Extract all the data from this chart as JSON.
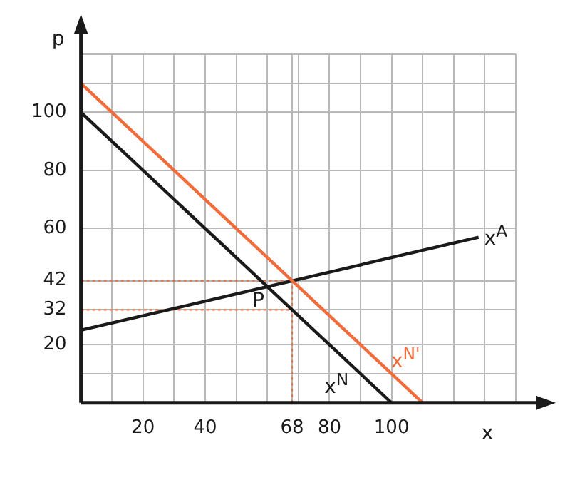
{
  "chart_data": {
    "type": "line",
    "xlabel": "x",
    "ylabel": "p",
    "xlim": [
      0,
      140
    ],
    "ylim": [
      0,
      120
    ],
    "xticks": [
      {
        "value": 10,
        "label": null
      },
      20,
      {
        "value": 30,
        "label": null
      },
      40,
      {
        "value": 50,
        "label": null
      },
      {
        "value": 60,
        "label": null
      },
      68,
      {
        "value": 70,
        "label": null
      },
      80,
      {
        "value": 90,
        "label": null
      },
      100,
      {
        "value": 110,
        "label": null
      },
      {
        "value": 120,
        "label": null
      },
      {
        "value": 130,
        "label": null
      },
      {
        "value": 140,
        "label": null
      }
    ],
    "yticks": [
      {
        "value": 10,
        "label": null
      },
      20,
      32,
      42,
      60,
      80,
      100,
      {
        "value": 110,
        "label": null
      },
      {
        "value": 120,
        "label": null
      }
    ],
    "grid": true,
    "legend": false,
    "series": [
      {
        "name": "x$^{N}$",
        "color": "#1a1a1a",
        "x": [
          0,
          100
        ],
        "values": [
          100,
          0
        ]
      },
      {
        "name": "x$^{N'}$",
        "color": "#f26b3a",
        "x": [
          0,
          110
        ],
        "values": [
          110,
          0
        ]
      },
      {
        "name": "x$^{A}$",
        "color": "#1a1a1a",
        "x": [
          0,
          128
        ],
        "values": [
          25,
          57
        ]
      },
      {
        "color": "#f26b3a",
        "line_style": "dotted",
        "x": [
          0,
          68
        ],
        "values": [
          42,
          42
        ]
      },
      {
        "color": "#f26b3a",
        "line_style": "dotted",
        "x": [
          0,
          68
        ],
        "values": [
          32,
          32
        ]
      },
      {
        "color": "#f26b3a",
        "line_style": "dotted",
        "x": [
          68,
          68
        ],
        "values": [
          0,
          42
        ]
      }
    ],
    "annotations": [
      {
        "text": "P",
        "x": 60,
        "y": 40
      }
    ]
  }
}
